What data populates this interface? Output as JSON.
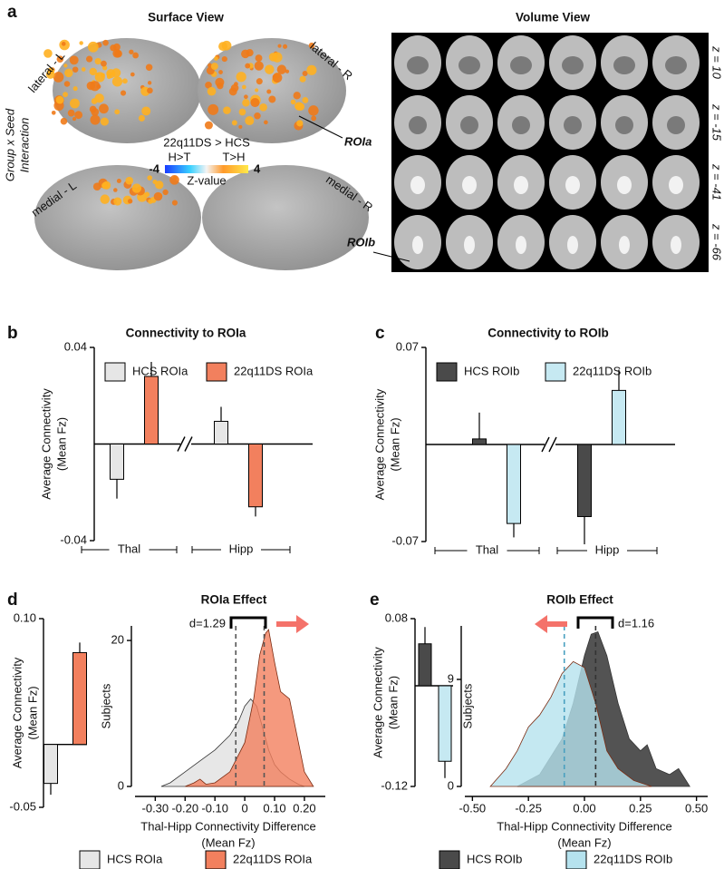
{
  "panel_a": {
    "letter": "a",
    "surface_title": "Surface View",
    "volume_title": "Volume View",
    "views": [
      "lateral - L",
      "lateral - R",
      "medial - L",
      "medial - R"
    ],
    "row_label": [
      "Group x Seed",
      "Interaction"
    ],
    "colorbar": {
      "title": "22q11DS > HCS",
      "left_label": "H>T",
      "right_label": "T>H",
      "min": -4,
      "max": 4,
      "label": "Z-value"
    },
    "roi_a": "ROIa",
    "roi_b": "ROIb",
    "slices": [
      "z = 10",
      "z = -15",
      "z = -41",
      "z = -66"
    ]
  },
  "chart_data": [
    {
      "type": "bar",
      "letter": "b",
      "title": "Connectivity to ROIa",
      "y_label": [
        "Average Connectivity",
        "(Mean Fz)"
      ],
      "categories": [
        "Thal",
        "Hipp"
      ],
      "series": [
        {
          "name": "HCS ROIa",
          "color": "#e6e6e6",
          "values": [
            -0.0146,
            0.0094
          ],
          "errors": [
            0.008,
            0.006
          ]
        },
        {
          "name": "22q11DS ROIa",
          "color": "#f2805e",
          "values": [
            0.028,
            -0.026
          ],
          "errors": [
            0.006,
            0.004
          ]
        }
      ],
      "ylim": [
        -0.04,
        0.04
      ],
      "yticks": [
        -0.04,
        0.04
      ]
    },
    {
      "type": "bar",
      "letter": "c",
      "title": "Connectivity to ROIb",
      "y_label": [
        "Average Connectivity",
        "(Mean Fz)"
      ],
      "categories": [
        "Thal",
        "Hipp"
      ],
      "series": [
        {
          "name": "HCS ROIb",
          "color": "#4a4a4a",
          "values": [
            0.004,
            -0.052
          ],
          "errors": [
            0.019,
            0.02
          ]
        },
        {
          "name": "22q11DS ROIb",
          "color": "#c6e9f2",
          "values": [
            -0.057,
            0.039
          ],
          "errors": [
            0.01,
            0.015
          ]
        }
      ],
      "ylim": [
        -0.07,
        0.07
      ],
      "yticks": [
        -0.07,
        0.07
      ]
    },
    {
      "type": "bar",
      "letter": "d",
      "y_label": [
        "Average Connectivity",
        "(Mean Fz)"
      ],
      "series": [
        {
          "color": "#e6e6e6",
          "values": [
            -0.031
          ],
          "errors": [
            0.009
          ]
        },
        {
          "color": "#f2805e",
          "values": [
            0.073
          ],
          "errors": [
            0.008
          ]
        }
      ],
      "ylim": [
        -0.05,
        0.1
      ],
      "yticks": [
        -0.05,
        {
          "value": 0.1,
          "label": "0.10"
        }
      ]
    },
    {
      "type": "density",
      "title": "ROIa Effect",
      "x_label": [
        "Thal-Hipp Connectivity Difference",
        "(Mean Fz)"
      ],
      "y_label": "Subjects",
      "annotation": "d=1.29",
      "arrow": "right",
      "arrow_color": "#f4726a",
      "series": [
        {
          "name": "HCS ROIa",
          "color": "#e6e6e6",
          "mean": -0.03,
          "mean_color": "#555555",
          "x": [
            -0.28,
            -0.25,
            -0.2,
            -0.15,
            -0.1,
            -0.05,
            -0.02,
            0,
            0.02,
            0.04,
            0.06,
            0.08,
            0.1,
            0.12,
            0.15,
            0.18,
            0.2
          ],
          "values": [
            0,
            0.5,
            2,
            3.5,
            5,
            7,
            9,
            11,
            12,
            11,
            8,
            5,
            3,
            2,
            1,
            0.3,
            0
          ]
        },
        {
          "name": "22q11DS ROIa",
          "color": "#f2805e",
          "mean": 0.065,
          "mean_color": "#555555",
          "x": [
            -0.2,
            -0.17,
            -0.15,
            -0.13,
            -0.1,
            -0.05,
            0,
            0.03,
            0.05,
            0.07,
            0.08,
            0.1,
            0.12,
            0.15,
            0.18,
            0.2,
            0.23
          ],
          "values": [
            0,
            0.5,
            1,
            0.3,
            0.5,
            2,
            6,
            12,
            18,
            21,
            21.5,
            17,
            13,
            12,
            6,
            2,
            0
          ]
        }
      ],
      "xlim": [
        -0.38,
        0.27
      ],
      "xticks": [
        {
          "value": -0.3,
          "label": "-0.30"
        },
        {
          "value": -0.2,
          "label": "-0.20"
        },
        {
          "value": -0.1,
          "label": "-0.10"
        },
        0,
        {
          "value": 0.1,
          "label": "0.10"
        },
        {
          "value": 0.2,
          "label": "0.20"
        }
      ],
      "ylim": [
        0,
        22
      ],
      "yticks": [
        0,
        20
      ]
    },
    {
      "type": "bar",
      "letter": "e",
      "y_label": [
        "Average Connectivity",
        "(Mean Fz)"
      ],
      "series": [
        {
          "color": "#4a4a4a",
          "values": [
            0.05
          ],
          "errors": [
            0.02
          ]
        },
        {
          "color": "#c6e9f2",
          "values": [
            -0.09
          ],
          "errors": [
            0.02
          ]
        }
      ],
      "ylim": [
        -0.12,
        0.08
      ],
      "yticks": [
        -0.12,
        0.08
      ]
    },
    {
      "type": "density",
      "title": "ROIb Effect",
      "x_label": [
        "Thal-Hipp Connectivity Difference",
        "(Mean Fz)"
      ],
      "y_label": "Subjects",
      "annotation": "d=1.16",
      "arrow": "left",
      "arrow_color": "#f4726a",
      "series": [
        {
          "name": "HCS ROIb",
          "color": "#4a4a4a",
          "mean": 0.05,
          "mean_color": "#333333",
          "x": [
            -0.3,
            -0.2,
            -0.1,
            -0.05,
            0,
            0.03,
            0.06,
            0.1,
            0.15,
            0.2,
            0.25,
            0.28,
            0.32,
            0.38,
            0.42,
            0.47
          ],
          "values": [
            0,
            1,
            4,
            7,
            11,
            12.8,
            13,
            11,
            7,
            4,
            3,
            3.5,
            1.5,
            1,
            1.5,
            0
          ]
        },
        {
          "name": "22q11DS ROIb",
          "color": "#b5e2ee",
          "mean": -0.09,
          "mean_color": "#4aa0c0",
          "x": [
            -0.42,
            -0.35,
            -0.3,
            -0.25,
            -0.2,
            -0.15,
            -0.1,
            -0.05,
            0,
            0.05,
            0.1,
            0.15,
            0.22,
            0.3
          ],
          "values": [
            0,
            1.5,
            3,
            5,
            6,
            7.5,
            9.5,
            10.5,
            10,
            7,
            3,
            1.5,
            0.5,
            0
          ]
        }
      ],
      "xlim": [
        -0.55,
        0.55
      ],
      "xticks": [
        {
          "value": -0.5,
          "label": "-0.50"
        },
        -0.25,
        {
          "value": 0,
          "label": "0.00"
        },
        0.25,
        {
          "value": 0.5,
          "label": "0.50"
        }
      ],
      "ylim": [
        0,
        13.5
      ],
      "yticks": [
        0,
        9
      ]
    }
  ]
}
